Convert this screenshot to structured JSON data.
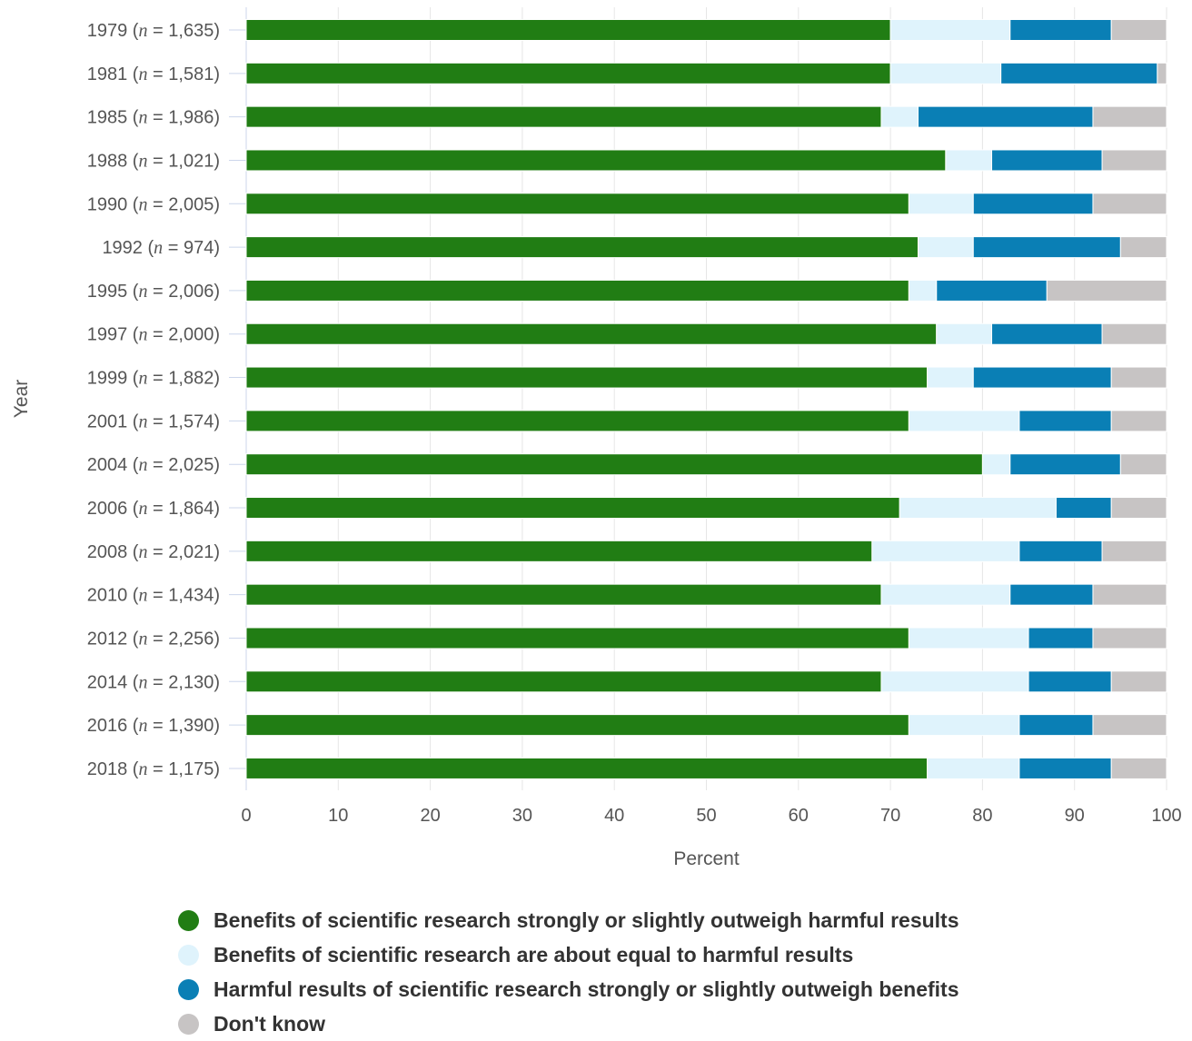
{
  "chart_data": {
    "type": "bar",
    "orientation": "horizontal",
    "stacked": true,
    "ylabel": "Year",
    "xlabel": "Percent",
    "xlim": [
      0,
      100
    ],
    "xticks": [
      "0",
      "10",
      "20",
      "30",
      "40",
      "50",
      "60",
      "70",
      "80",
      "90",
      "100"
    ],
    "grid": "vertical",
    "legend_position": "bottom",
    "categories": [
      {
        "year": "1979",
        "n": "1,635"
      },
      {
        "year": "1981",
        "n": "1,581"
      },
      {
        "year": "1985",
        "n": "1,986"
      },
      {
        "year": "1988",
        "n": "1,021"
      },
      {
        "year": "1990",
        "n": "2,005"
      },
      {
        "year": "1992",
        "n": "974"
      },
      {
        "year": "1995",
        "n": "2,006"
      },
      {
        "year": "1997",
        "n": "2,000"
      },
      {
        "year": "1999",
        "n": "1,882"
      },
      {
        "year": "2001",
        "n": "1,574"
      },
      {
        "year": "2004",
        "n": "2,025"
      },
      {
        "year": "2006",
        "n": "1,864"
      },
      {
        "year": "2008",
        "n": "2,021"
      },
      {
        "year": "2010",
        "n": "1,434"
      },
      {
        "year": "2012",
        "n": "2,256"
      },
      {
        "year": "2014",
        "n": "2,130"
      },
      {
        "year": "2016",
        "n": "1,390"
      },
      {
        "year": "2018",
        "n": "1,175"
      }
    ],
    "series": [
      {
        "name": "Benefits of scientific research strongly or slightly outweigh harmful results",
        "color": "#217d14",
        "values": [
          70,
          70,
          69,
          76,
          72,
          73,
          72,
          75,
          74,
          72,
          80,
          71,
          68,
          69,
          72,
          69,
          72,
          74
        ]
      },
      {
        "name": "Benefits of scientific research are about equal to harmful results",
        "color": "#dff3fc",
        "values": [
          13,
          12,
          4,
          5,
          7,
          6,
          3,
          6,
          5,
          12,
          3,
          17,
          16,
          14,
          13,
          16,
          12,
          10
        ]
      },
      {
        "name": "Harmful results of scientific research strongly or slightly outweigh benefits",
        "color": "#0a7fb5",
        "values": [
          11,
          17,
          19,
          12,
          13,
          16,
          12,
          12,
          15,
          10,
          12,
          6,
          9,
          9,
          7,
          9,
          8,
          10
        ]
      },
      {
        "name": "Don't know",
        "color": "#c7c4c4",
        "values": [
          6,
          1,
          8,
          7,
          8,
          5,
          13,
          7,
          6,
          6,
          5,
          6,
          7,
          8,
          8,
          6,
          8,
          6
        ]
      }
    ]
  }
}
